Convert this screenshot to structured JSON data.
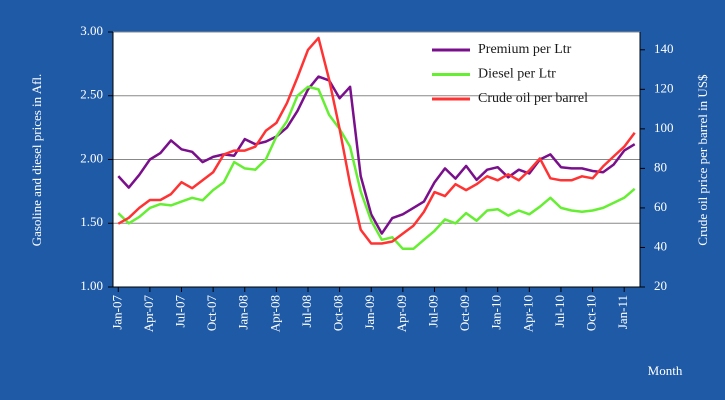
{
  "chart_data": {
    "type": "line",
    "y_label": "Gasoline and diesel prices in Afl.",
    "y2_label": "Crude oil price per barrel in US$",
    "x_label": "Month",
    "categories": [
      "Jan-07",
      null,
      null,
      "Apr-07",
      null,
      null,
      "Jul-07",
      null,
      null,
      "Oct-07",
      null,
      null,
      "Jan-08",
      null,
      null,
      "Apr-08",
      null,
      null,
      "Jul-08",
      null,
      null,
      "Oct-08",
      null,
      null,
      "Jan-09",
      null,
      null,
      "Apr-09",
      null,
      null,
      "Jul-09",
      null,
      null,
      "Oct-09",
      null,
      null,
      "Jan-10",
      null,
      null,
      "Apr-10",
      null,
      null,
      "Jul-10",
      null,
      null,
      "Oct-10",
      null,
      null,
      "Jan-11",
      null
    ],
    "series": [
      {
        "name": "Premium per Ltr",
        "color": "#7a0f8c",
        "values": [
          1.87,
          1.78,
          1.88,
          2.0,
          2.05,
          2.15,
          2.08,
          2.06,
          1.98,
          2.02,
          2.04,
          2.03,
          2.16,
          2.12,
          2.14,
          2.18,
          2.25,
          2.38,
          2.55,
          2.65,
          2.62,
          2.48,
          2.57,
          1.87,
          1.57,
          1.42,
          1.54,
          1.57,
          1.62,
          1.67,
          1.82,
          1.93,
          1.85,
          1.95,
          1.84,
          1.92,
          1.94,
          1.86,
          1.92,
          1.89,
          2.0,
          2.04,
          1.94,
          1.93,
          1.93,
          1.91,
          1.9,
          1.96,
          2.07,
          2.12
        ]
      },
      {
        "name": "Diesel per Ltr",
        "color": "#66ee33",
        "values": [
          1.58,
          1.5,
          1.55,
          1.62,
          1.65,
          1.64,
          1.67,
          1.7,
          1.68,
          1.76,
          1.82,
          1.98,
          1.93,
          1.92,
          2.0,
          2.18,
          2.3,
          2.5,
          2.57,
          2.55,
          2.35,
          2.24,
          2.1,
          1.75,
          1.52,
          1.37,
          1.39,
          1.3,
          1.3,
          1.37,
          1.44,
          1.53,
          1.5,
          1.58,
          1.52,
          1.6,
          1.61,
          1.56,
          1.6,
          1.57,
          1.63,
          1.7,
          1.62,
          1.6,
          1.59,
          1.6,
          1.62,
          1.66,
          1.7,
          1.77
        ]
      },
      {
        "name": "Crude oil per barrel",
        "color": "#ff3333",
        "axis": "y2",
        "values": [
          52,
          55,
          60,
          64,
          64,
          67,
          73,
          70,
          74,
          78,
          87,
          89,
          89,
          91,
          99,
          103,
          113,
          126,
          140,
          146,
          125,
          100,
          72,
          49,
          42,
          42,
          43,
          47,
          51,
          58,
          68,
          66,
          72,
          69,
          72,
          76,
          74,
          77,
          74,
          79,
          85,
          75,
          74,
          74,
          76,
          75,
          81,
          86,
          91,
          98
        ]
      }
    ],
    "ylim": [
      1,
      3
    ],
    "yticks": [
      {
        "value": 1,
        "label": "1.00"
      },
      {
        "value": 1.5,
        "label": "1.50"
      },
      {
        "value": 2,
        "label": "2.00"
      },
      {
        "value": 2.5,
        "label": "2.50"
      },
      {
        "value": 3,
        "label": "3.00"
      }
    ],
    "y2lim": [
      20,
      149
    ],
    "y2ticks": [
      20,
      40,
      60,
      80,
      100,
      120,
      140
    ],
    "grid": true,
    "legend": "upper right"
  }
}
